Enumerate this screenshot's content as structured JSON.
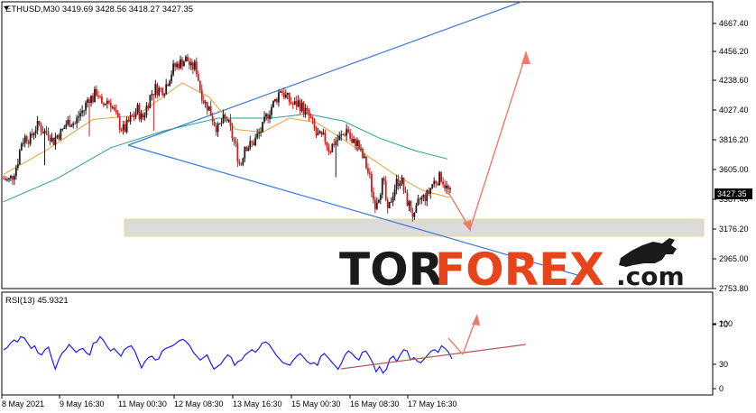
{
  "header": {
    "symbol_line": "ETHUSD,M30  3419.69 3428.56 3418.27 3427.35",
    "last_price_tag": "3427.35",
    "rsi_label": "RSI(13) 45.9321"
  },
  "logo": {
    "part1": "TOR",
    "part2": "FOREX",
    "part3": ".com"
  },
  "colors": {
    "bull_candle": "#1c1c1c",
    "bear_candle": "#d61a1a",
    "ma_fast": "#e2a13a",
    "ma_slow": "#2a9d8f",
    "channel": "#3a78d6",
    "forecast_arrow": "#f07a6a",
    "rsi_line": "#1a1aff",
    "rsi_trendline": "#b05a5a",
    "support_zone": "#cfcfcf",
    "price_tag_bg": "#000000"
  },
  "chart_data": [
    {
      "type": "candlestick",
      "title": "ETHUSD,M30",
      "ohlc_last": {
        "open": 3419.69,
        "high": 3428.56,
        "low": 3418.27,
        "close": 3427.35
      },
      "y_ticks": [
        4667.4,
        4456.2,
        4238.6,
        4027.4,
        3816.2,
        3605.0,
        3387.4,
        3176.2,
        2965.0,
        2753.8
      ],
      "y_tick_labels": [
        "4667.40",
        "4456.20",
        "4238.60",
        "4027.40",
        "3816.20",
        "3605.00",
        "3387.40",
        "3176.20",
        "2965.00",
        "2753.80"
      ],
      "ylim": [
        2740,
        4760
      ],
      "x_tick_labels": [
        "8 May 2021",
        "9 May 16:30",
        "11 May 00:30",
        "12 May 08:30",
        "13 May 16:30",
        "15 May 00:30",
        "16 May 08:30",
        "17 May 16:30"
      ],
      "close_path": [
        [
          0,
          3540
        ],
        [
          5,
          3520
        ],
        [
          10,
          3560
        ],
        [
          15,
          3640
        ],
        [
          20,
          3800
        ],
        [
          25,
          3840
        ],
        [
          30,
          3820
        ],
        [
          35,
          3900
        ],
        [
          40,
          3920
        ],
        [
          45,
          3870
        ],
        [
          50,
          3880
        ],
        [
          55,
          3800
        ],
        [
          60,
          3850
        ],
        [
          65,
          3870
        ],
        [
          70,
          3930
        ],
        [
          75,
          3950
        ],
        [
          80,
          3930
        ],
        [
          85,
          4000
        ],
        [
          90,
          4030
        ],
        [
          95,
          4120
        ],
        [
          100,
          4110
        ],
        [
          105,
          4170
        ],
        [
          110,
          4040
        ],
        [
          115,
          4100
        ],
        [
          120,
          4080
        ],
        [
          125,
          3990
        ],
        [
          130,
          3920
        ],
        [
          135,
          3880
        ],
        [
          140,
          3940
        ],
        [
          145,
          3980
        ],
        [
          150,
          4030
        ],
        [
          155,
          3960
        ],
        [
          160,
          4050
        ],
        [
          165,
          4140
        ],
        [
          170,
          4180
        ],
        [
          175,
          4170
        ],
        [
          180,
          4180
        ],
        [
          185,
          4250
        ],
        [
          190,
          4330
        ],
        [
          195,
          4360
        ],
        [
          200,
          4380
        ],
        [
          205,
          4400
        ],
        [
          210,
          4330
        ],
        [
          215,
          4350
        ],
        [
          220,
          4180
        ],
        [
          225,
          4080
        ],
        [
          230,
          4040
        ],
        [
          235,
          3950
        ],
        [
          240,
          3890
        ],
        [
          245,
          3950
        ],
        [
          250,
          3960
        ],
        [
          255,
          3860
        ],
        [
          260,
          3760
        ],
        [
          265,
          3620
        ],
        [
          270,
          3780
        ],
        [
          275,
          3770
        ],
        [
          280,
          3800
        ],
        [
          285,
          3850
        ],
        [
          290,
          3900
        ],
        [
          295,
          3990
        ],
        [
          300,
          4050
        ],
        [
          305,
          4100
        ],
        [
          310,
          4180
        ],
        [
          315,
          4130
        ],
        [
          320,
          4090
        ],
        [
          325,
          4060
        ],
        [
          330,
          4080
        ],
        [
          335,
          4040
        ],
        [
          340,
          4000
        ],
        [
          345,
          3940
        ],
        [
          350,
          3850
        ],
        [
          355,
          3830
        ],
        [
          360,
          3820
        ],
        [
          365,
          3740
        ],
        [
          370,
          3800
        ],
        [
          375,
          3820
        ],
        [
          380,
          3850
        ],
        [
          385,
          3900
        ],
        [
          390,
          3780
        ],
        [
          395,
          3810
        ],
        [
          400,
          3720
        ],
        [
          405,
          3650
        ],
        [
          410,
          3540
        ],
        [
          415,
          3350
        ],
        [
          420,
          3420
        ],
        [
          425,
          3530
        ],
        [
          430,
          3280
        ],
        [
          435,
          3420
        ],
        [
          440,
          3510
        ],
        [
          445,
          3540
        ],
        [
          450,
          3400
        ],
        [
          455,
          3330
        ],
        [
          460,
          3250
        ],
        [
          465,
          3380
        ],
        [
          470,
          3400
        ],
        [
          475,
          3420
        ],
        [
          480,
          3500
        ],
        [
          485,
          3530
        ],
        [
          490,
          3550
        ],
        [
          495,
          3480
        ],
        [
          500,
          3427
        ]
      ],
      "ma_fast_path": [
        [
          0,
          3570
        ],
        [
          50,
          3750
        ],
        [
          100,
          3960
        ],
        [
          150,
          3990
        ],
        [
          200,
          4220
        ],
        [
          230,
          4120
        ],
        [
          260,
          3890
        ],
        [
          290,
          3870
        ],
        [
          320,
          3970
        ],
        [
          350,
          3940
        ],
        [
          380,
          3820
        ],
        [
          410,
          3690
        ],
        [
          440,
          3560
        ],
        [
          470,
          3450
        ],
        [
          500,
          3400
        ]
      ],
      "ma_slow_path": [
        [
          0,
          3370
        ],
        [
          60,
          3540
        ],
        [
          120,
          3760
        ],
        [
          180,
          3880
        ],
        [
          240,
          3970
        ],
        [
          300,
          3970
        ],
        [
          340,
          4000
        ],
        [
          380,
          3950
        ],
        [
          420,
          3830
        ],
        [
          460,
          3740
        ],
        [
          497,
          3680
        ]
      ]
    },
    {
      "type": "line",
      "title": "RSI(13) 45.9321",
      "y_ticks": [
        100,
        70,
        30,
        0
      ],
      "y_tick_labels": [
        "100",
        "70",
        "30",
        "0"
      ],
      "ylim": [
        0,
        100
      ],
      "values": [
        60,
        63,
        70,
        75,
        72,
        80,
        78,
        70,
        62,
        66,
        55,
        52,
        60,
        64,
        46,
        30,
        45,
        55,
        60,
        68,
        62,
        56,
        60,
        62,
        55,
        52,
        70,
        72,
        80,
        74,
        65,
        58,
        62,
        56,
        50,
        60,
        64,
        66,
        58,
        45,
        32,
        42,
        48,
        50,
        44,
        46,
        58,
        62,
        64,
        66,
        70,
        74,
        76,
        72,
        66,
        56,
        50,
        44,
        48,
        52,
        40,
        30,
        34,
        38,
        46,
        52,
        48,
        36,
        42,
        44,
        52,
        56,
        60,
        56,
        62,
        70,
        72,
        68,
        60,
        52,
        46,
        40,
        38,
        36,
        44,
        50,
        54,
        48,
        42,
        38,
        40,
        36,
        50,
        54,
        48,
        42,
        36,
        30,
        40,
        52,
        58,
        54,
        48,
        44,
        56,
        58,
        50,
        40,
        26,
        34,
        24,
        30,
        46,
        50,
        42,
        52,
        60,
        58,
        44,
        48,
        42,
        40,
        46,
        52,
        58,
        60,
        56,
        66,
        62,
        56,
        46
      ]
    }
  ]
}
